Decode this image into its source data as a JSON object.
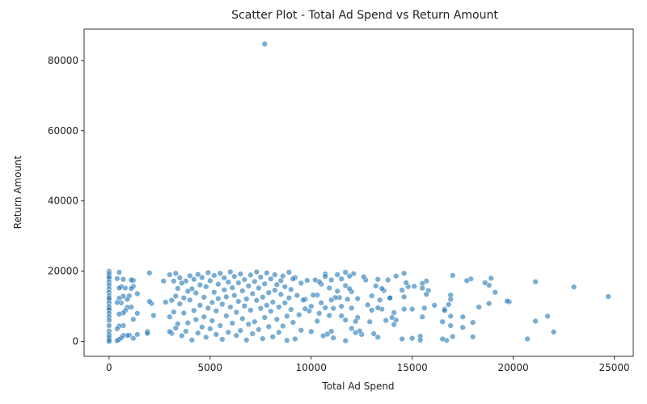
{
  "chart_data": {
    "type": "scatter",
    "title": "Scatter Plot - Total Ad Spend vs Return Amount",
    "xlabel": "Total Ad Spend",
    "ylabel": "Return Amount",
    "xlim": [
      -1235,
      25937
    ],
    "ylim": [
      -4235,
      88935
    ],
    "xticks": [
      0,
      5000,
      10000,
      15000,
      20000,
      25000
    ],
    "xtick_labels": [
      "0",
      "5000",
      "10000",
      "15000",
      "20000",
      "25000"
    ],
    "yticks": [
      0,
      20000,
      40000,
      60000,
      80000
    ],
    "ytick_labels": [
      "0",
      "20000",
      "40000",
      "60000",
      "80000"
    ],
    "grid": false,
    "legend": "none",
    "colors": {
      "point_fill": "#1f77b4",
      "point_edge": "#ffffff",
      "axis": "#000000",
      "text": "#222222"
    },
    "point_alpha": 0.6,
    "points": [
      [
        7700,
        84700
      ],
      [
        24700,
        12800
      ],
      [
        23000,
        15500
      ],
      [
        22000,
        2700
      ],
      [
        21700,
        7200
      ],
      [
        21100,
        17000
      ],
      [
        21100,
        5800
      ],
      [
        20700,
        700
      ],
      [
        19800,
        11300
      ],
      [
        19700,
        11500
      ],
      [
        19100,
        14000
      ],
      [
        18900,
        18000
      ],
      [
        18800,
        16000
      ],
      [
        18800,
        10800
      ],
      [
        18600,
        16700
      ],
      [
        18300,
        9800
      ],
      [
        18000,
        5400
      ],
      [
        18000,
        1300
      ],
      [
        17900,
        17800
      ],
      [
        17700,
        17300
      ],
      [
        17500,
        7000
      ],
      [
        17500,
        4000
      ],
      [
        17000,
        18800
      ],
      [
        17000,
        1400
      ],
      [
        16900,
        13200
      ],
      [
        16900,
        12000
      ],
      [
        16900,
        7200
      ],
      [
        16900,
        4500
      ],
      [
        16800,
        10500
      ],
      [
        16700,
        300
      ],
      [
        16600,
        9200
      ],
      [
        16600,
        8800
      ],
      [
        16500,
        700
      ],
      [
        16500,
        5600
      ],
      [
        16100,
        10300
      ],
      [
        15800,
        14500
      ],
      [
        15700,
        17200
      ],
      [
        15700,
        13400
      ],
      [
        15600,
        9500
      ],
      [
        15500,
        16500
      ],
      [
        15500,
        15200
      ],
      [
        15500,
        7000
      ],
      [
        15400,
        1500
      ],
      [
        15400,
        400
      ],
      [
        15100,
        15700
      ],
      [
        15000,
        9200
      ],
      [
        15000,
        900
      ],
      [
        14800,
        15600
      ],
      [
        14700,
        16700
      ],
      [
        14600,
        19400
      ],
      [
        14600,
        12700
      ],
      [
        14600,
        9200
      ],
      [
        14500,
        14600
      ],
      [
        14500,
        700
      ],
      [
        14200,
        18600
      ],
      [
        14200,
        6100
      ],
      [
        14100,
        8200
      ],
      [
        14100,
        4800
      ],
      [
        14000,
        6800
      ],
      [
        13900,
        12300
      ],
      [
        13900,
        12400
      ],
      [
        13800,
        17500
      ],
      [
        13700,
        6000
      ],
      [
        13600,
        14500
      ],
      [
        13500,
        9200
      ],
      [
        13500,
        15100
      ],
      [
        13400,
        11800
      ],
      [
        13300,
        17700
      ],
      [
        13300,
        9600
      ],
      [
        13300,
        1200
      ],
      [
        13200,
        15800
      ],
      [
        13100,
        2200
      ],
      [
        13000,
        13000
      ],
      [
        13000,
        8900
      ],
      [
        12900,
        5600
      ],
      [
        12800,
        10400
      ],
      [
        12700,
        17500
      ],
      [
        12600,
        18400
      ],
      [
        12500,
        2000
      ],
      [
        12400,
        3000
      ],
      [
        12300,
        12200
      ],
      [
        12300,
        6800
      ],
      [
        12200,
        5700
      ],
      [
        12200,
        2500
      ],
      [
        12100,
        19300
      ],
      [
        12000,
        14200
      ],
      [
        12000,
        9500
      ],
      [
        12000,
        3700
      ],
      [
        11900,
        18600
      ],
      [
        11900,
        15000
      ],
      [
        11800,
        12000
      ],
      [
        11700,
        19700
      ],
      [
        11700,
        15900
      ],
      [
        11700,
        6100
      ],
      [
        11700,
        200
      ],
      [
        11500,
        17800
      ],
      [
        11500,
        10000
      ],
      [
        11500,
        7300
      ],
      [
        11400,
        12500
      ],
      [
        11300,
        19000
      ],
      [
        11300,
        14300
      ],
      [
        11200,
        12500
      ],
      [
        11100,
        9400
      ],
      [
        11100,
        1000
      ],
      [
        11000,
        17500
      ],
      [
        11000,
        11800
      ],
      [
        11000,
        2900
      ],
      [
        10900,
        15200
      ],
      [
        10900,
        7400
      ],
      [
        10800,
        2100
      ],
      [
        10700,
        19200
      ],
      [
        10700,
        18500
      ],
      [
        10700,
        9600
      ],
      [
        10600,
        1600
      ],
      [
        10500,
        16300
      ],
      [
        10500,
        11000
      ],
      [
        10400,
        8000
      ],
      [
        10400,
        17000
      ],
      [
        10300,
        13200
      ],
      [
        10300,
        5800
      ],
      [
        10200,
        17500
      ],
      [
        10100,
        13200
      ],
      [
        10000,
        10000
      ],
      [
        10000,
        2800
      ],
      [
        9900,
        8700
      ],
      [
        9800,
        17400
      ],
      [
        9700,
        12000
      ],
      [
        9700,
        9300
      ],
      [
        9600,
        11800
      ],
      [
        9500,
        16600
      ],
      [
        9500,
        3200
      ],
      [
        9400,
        7600
      ],
      [
        9300,
        13100
      ],
      [
        9200,
        18200
      ],
      [
        9200,
        700
      ],
      [
        9100,
        17800
      ],
      [
        9100,
        5400
      ],
      [
        9000,
        14800
      ],
      [
        9000,
        9100
      ],
      [
        8900,
        19700
      ],
      [
        8900,
        12400
      ],
      [
        8800,
        7200
      ],
      [
        8800,
        300
      ],
      [
        8700,
        15600
      ],
      [
        8700,
        11000
      ],
      [
        8600,
        18600
      ],
      [
        8600,
        4400
      ],
      [
        8500,
        17300
      ],
      [
        8500,
        13400
      ],
      [
        8400,
        9800
      ],
      [
        8400,
        2600
      ],
      [
        8300,
        16200
      ],
      [
        8300,
        6300
      ],
      [
        8200,
        19000
      ],
      [
        8200,
        14600
      ],
      [
        8100,
        11200
      ],
      [
        8100,
        1300
      ],
      [
        8000,
        17800
      ],
      [
        8000,
        8600
      ],
      [
        7900,
        13900
      ],
      [
        7900,
        4200
      ],
      [
        7800,
        19500
      ],
      [
        7800,
        10300
      ],
      [
        7700,
        16400
      ],
      [
        7700,
        6800
      ],
      [
        7600,
        12600
      ],
      [
        7600,
        800
      ],
      [
        7500,
        18300
      ],
      [
        7500,
        9400
      ],
      [
        7400,
        15200
      ],
      [
        7400,
        3400
      ],
      [
        7300,
        19800
      ],
      [
        7300,
        11700
      ],
      [
        7200,
        17100
      ],
      [
        7200,
        5600
      ],
      [
        7100,
        13600
      ],
      [
        7100,
        2200
      ],
      [
        7000,
        18900
      ],
      [
        7000,
        8900
      ],
      [
        6900,
        15800
      ],
      [
        6900,
        4900
      ],
      [
        6800,
        12100
      ],
      [
        6800,
        400
      ],
      [
        6700,
        17600
      ],
      [
        6700,
        10100
      ],
      [
        6600,
        14400
      ],
      [
        6600,
        6500
      ],
      [
        6500,
        19200
      ],
      [
        6500,
        3100
      ],
      [
        6400,
        16700
      ],
      [
        6400,
        11400
      ],
      [
        6300,
        8300
      ],
      [
        6300,
        1700
      ],
      [
        6200,
        18500
      ],
      [
        6200,
        13100
      ],
      [
        6100,
        15300
      ],
      [
        6100,
        5200
      ],
      [
        6000,
        19800
      ],
      [
        6000,
        9800
      ],
      [
        5900,
        16900
      ],
      [
        5900,
        2600
      ],
      [
        5800,
        12700
      ],
      [
        5800,
        7300
      ],
      [
        5700,
        18100
      ],
      [
        5700,
        14700
      ],
      [
        5600,
        10600
      ],
      [
        5600,
        600
      ],
      [
        5500,
        19400
      ],
      [
        5500,
        4500
      ],
      [
        5400,
        16300
      ],
      [
        5400,
        12200
      ],
      [
        5300,
        8700
      ],
      [
        5300,
        2000
      ],
      [
        5200,
        18800
      ],
      [
        5200,
        14000
      ],
      [
        5100,
        11100
      ],
      [
        5100,
        5900
      ],
      [
        5000,
        17300
      ],
      [
        5000,
        3600
      ],
      [
        4900,
        19600
      ],
      [
        4900,
        9500
      ],
      [
        4800,
        15600
      ],
      [
        4800,
        1200
      ],
      [
        4700,
        12600
      ],
      [
        4700,
        7000
      ],
      [
        4600,
        18200
      ],
      [
        4600,
        4100
      ],
      [
        4500,
        16100
      ],
      [
        4500,
        10300
      ],
      [
        4400,
        19100
      ],
      [
        4400,
        2400
      ],
      [
        4300,
        13800
      ],
      [
        4300,
        6200
      ],
      [
        4200,
        17700
      ],
      [
        4200,
        8800
      ],
      [
        4100,
        15000
      ],
      [
        4100,
        400
      ],
      [
        4000,
        18700
      ],
      [
        4000,
        11800
      ],
      [
        3900,
        5300
      ],
      [
        3900,
        14300
      ],
      [
        3800,
        17200
      ],
      [
        3800,
        2900
      ],
      [
        3700,
        12400
      ],
      [
        3700,
        8100
      ],
      [
        3600,
        16600
      ],
      [
        3600,
        1600
      ],
      [
        3500,
        18100
      ],
      [
        3500,
        10700
      ],
      [
        3400,
        15100
      ],
      [
        3400,
        5000
      ],
      [
        3300,
        19400
      ],
      [
        3300,
        12900
      ],
      [
        3300,
        3800
      ],
      [
        3200,
        17200
      ],
      [
        3200,
        8400
      ],
      [
        3100,
        11700
      ],
      [
        3100,
        2300
      ],
      [
        3000,
        19000
      ],
      [
        3000,
        7000
      ],
      [
        3000,
        2800
      ],
      [
        2800,
        11200
      ],
      [
        2700,
        17200
      ],
      [
        2200,
        7400
      ],
      [
        2100,
        10800
      ],
      [
        2000,
        19500
      ],
      [
        2000,
        11400
      ],
      [
        1900,
        2800
      ],
      [
        1900,
        2300
      ],
      [
        1400,
        13600
      ],
      [
        1400,
        8000
      ],
      [
        1400,
        2000
      ],
      [
        1200,
        17400
      ],
      [
        1200,
        15700
      ],
      [
        1200,
        6300
      ],
      [
        1200,
        900
      ],
      [
        1100,
        17500
      ],
      [
        1100,
        15100
      ],
      [
        1100,
        9800
      ],
      [
        1000,
        13000
      ],
      [
        1000,
        1800
      ],
      [
        900,
        12000
      ],
      [
        900,
        9700
      ],
      [
        900,
        1700
      ],
      [
        800,
        15200
      ],
      [
        800,
        8800
      ],
      [
        700,
        17700
      ],
      [
        700,
        12900
      ],
      [
        700,
        8100
      ],
      [
        700,
        4500
      ],
      [
        700,
        1700
      ],
      [
        600,
        15600
      ],
      [
        600,
        11000
      ],
      [
        600,
        1000
      ],
      [
        500,
        19700
      ],
      [
        500,
        15200
      ],
      [
        500,
        12300
      ],
      [
        500,
        7800
      ],
      [
        500,
        4400
      ],
      [
        500,
        600
      ],
      [
        400,
        17900
      ],
      [
        400,
        11100
      ],
      [
        400,
        3600
      ],
      [
        400,
        200
      ],
      [
        0,
        20000
      ],
      [
        0,
        19500
      ],
      [
        0,
        19000
      ],
      [
        0,
        18500
      ],
      [
        0,
        18000
      ],
      [
        0,
        17000
      ],
      [
        0,
        16000
      ],
      [
        0,
        15000
      ],
      [
        0,
        14000
      ],
      [
        0,
        13000
      ],
      [
        0,
        12500
      ],
      [
        0,
        12000
      ],
      [
        0,
        11000
      ],
      [
        0,
        10000
      ],
      [
        0,
        9500
      ],
      [
        0,
        9000
      ],
      [
        0,
        8000
      ],
      [
        0,
        7000
      ],
      [
        0,
        6000
      ],
      [
        0,
        4500
      ],
      [
        0,
        3000
      ],
      [
        0,
        2000
      ],
      [
        0,
        1500
      ],
      [
        0,
        1000
      ],
      [
        0,
        500
      ],
      [
        0,
        0
      ]
    ]
  }
}
